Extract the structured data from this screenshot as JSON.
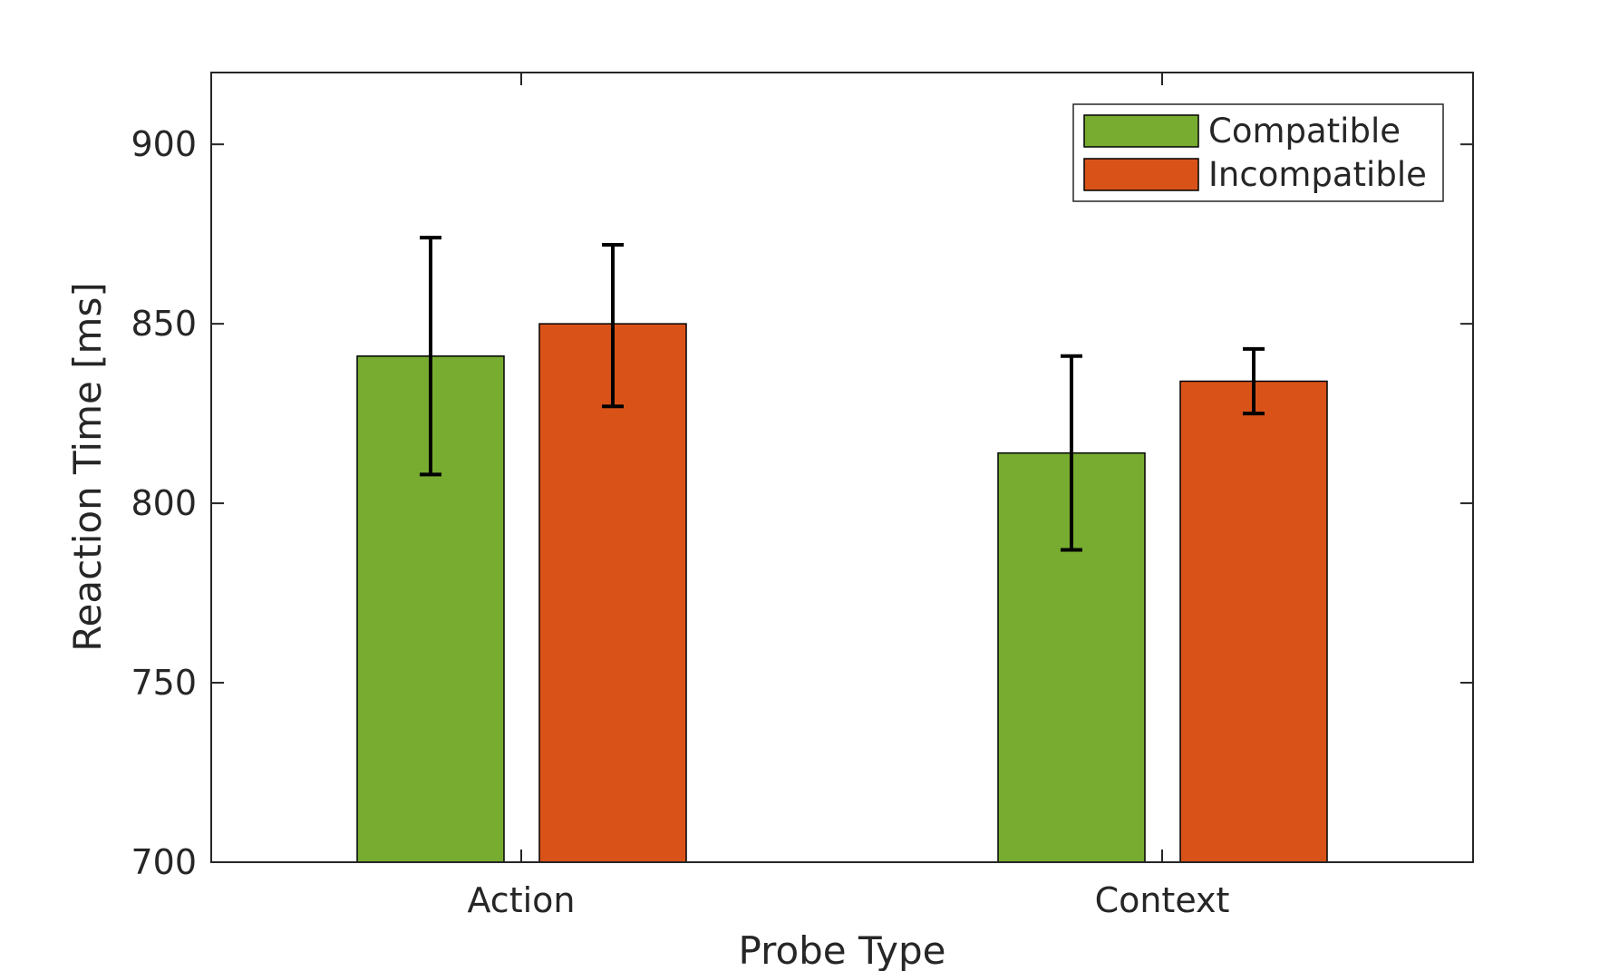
{
  "chart_data": {
    "type": "bar",
    "xlabel": "Probe Type",
    "ylabel": "Reaction Time [ms]",
    "categories": [
      "Action",
      "Context"
    ],
    "ylim": [
      700,
      920
    ],
    "yticks": [
      700,
      750,
      800,
      850,
      900
    ],
    "grid": false,
    "legend_position": "top-right",
    "series": [
      {
        "name": "Compatible",
        "color": "#77AC30",
        "values": [
          841,
          814
        ],
        "error_low": [
          808,
          787
        ],
        "error_high": [
          874,
          841
        ]
      },
      {
        "name": "Incompatible",
        "color": "#D95319",
        "values": [
          850,
          834
        ],
        "error_low": [
          827,
          825
        ],
        "error_high": [
          872,
          843
        ]
      }
    ]
  }
}
